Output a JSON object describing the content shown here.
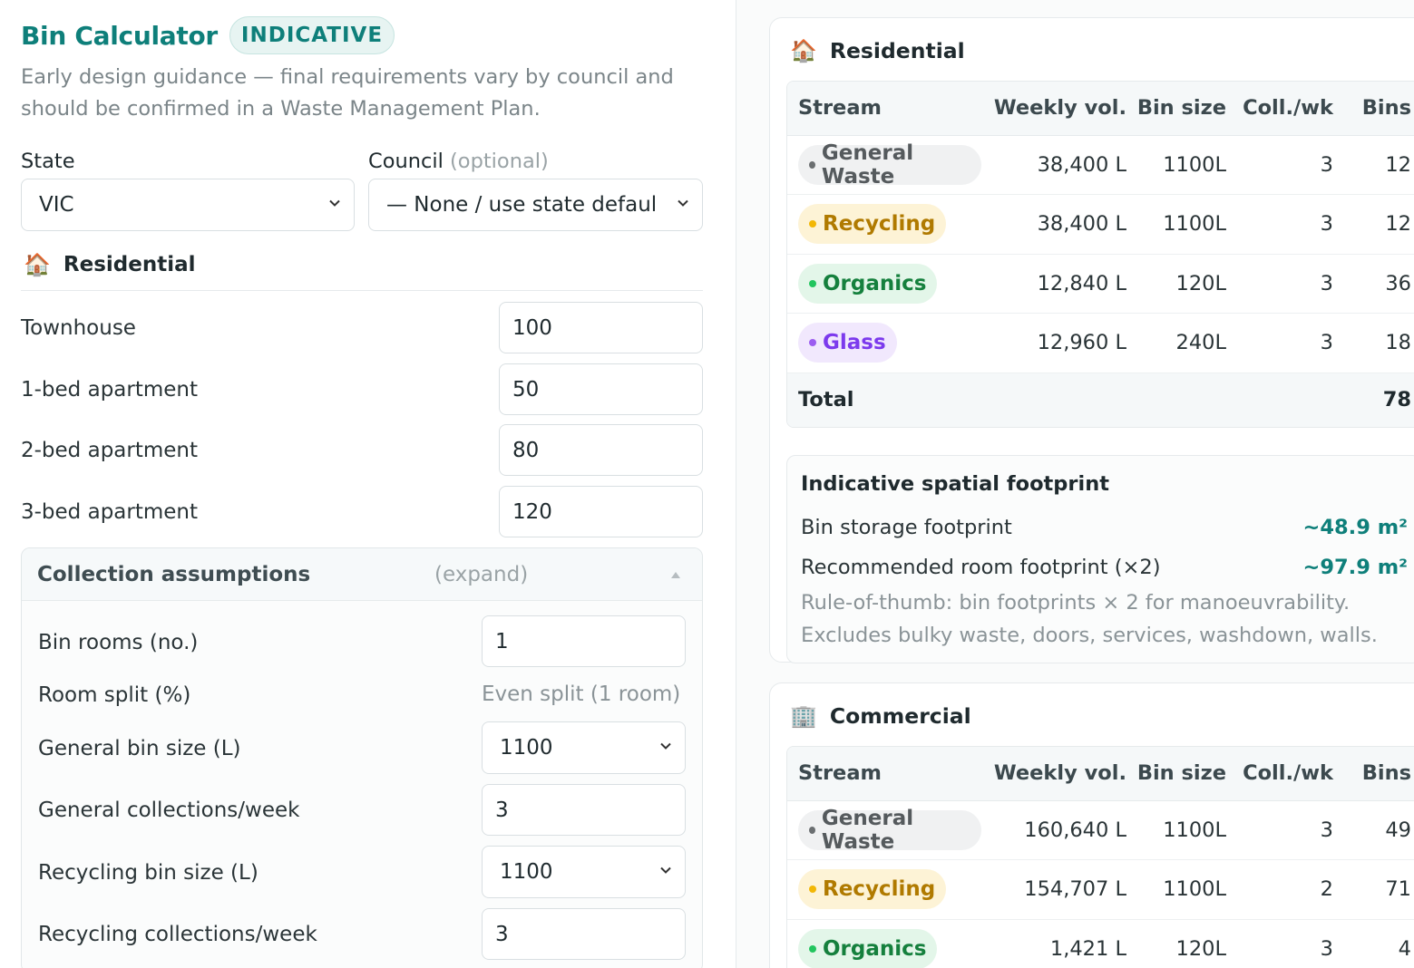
{
  "header": {
    "title": "Bin Calculator",
    "badge": "INDICATIVE",
    "subtitle": "Early design guidance — final requirements vary by council and should be confirmed in a Waste Management Plan."
  },
  "form": {
    "state_label": "State",
    "state_value": "VIC",
    "council_label": "Council",
    "council_optional": "(optional)",
    "council_value": "— None / use state defaults"
  },
  "residential_inputs": {
    "heading": "Residential",
    "icon": "house-icon",
    "rows": [
      {
        "label": "Townhouse",
        "value": "100"
      },
      {
        "label": "1-bed apartment",
        "value": "50"
      },
      {
        "label": "2-bed apartment",
        "value": "80"
      },
      {
        "label": "3-bed apartment",
        "value": "120"
      }
    ]
  },
  "assumptions": {
    "title": "Collection assumptions",
    "toggle": "(expand)",
    "bin_rooms_label": "Bin rooms (no.)",
    "bin_rooms_value": "1",
    "room_split_label": "Room split (%)",
    "room_split_value": "Even split (1 room)",
    "general_bin_label": "General bin size (L)",
    "general_bin_value": "1100",
    "general_coll_label": "General collections/week",
    "general_coll_value": "3",
    "recycling_bin_label": "Recycling bin size (L)",
    "recycling_bin_value": "1100",
    "recycling_coll_label": "Recycling collections/week",
    "recycling_coll_value": "3"
  },
  "colors": {
    "accent": "#0e7f7a",
    "general": "#6b6f71",
    "recycling": "#c98a00",
    "organics": "#16a34a",
    "glass": "#8b3fe0"
  },
  "columns": {
    "stream": "Stream",
    "weekly": "Weekly vol.",
    "bin_size": "Bin size",
    "coll": "Coll./wk",
    "bins": "Bins"
  },
  "residential_results": {
    "heading": "Residential",
    "icon": "house-icon",
    "rows": [
      {
        "stream": "General Waste",
        "weekly": "38,400 L",
        "bin": "1100L",
        "coll": "3",
        "bins": "12"
      },
      {
        "stream": "Recycling",
        "weekly": "38,400 L",
        "bin": "1100L",
        "coll": "3",
        "bins": "12"
      },
      {
        "stream": "Organics",
        "weekly": "12,840 L",
        "bin": "120L",
        "coll": "3",
        "bins": "36"
      },
      {
        "stream": "Glass",
        "weekly": "12,960 L",
        "bin": "240L",
        "coll": "3",
        "bins": "18"
      }
    ],
    "total_label": "Total",
    "total_value": "78"
  },
  "footprint": {
    "title": "Indicative spatial footprint",
    "bin_label": "Bin storage footprint",
    "bin_value": "~48.9 m²",
    "room_label": "Recommended room footprint (×2)",
    "room_value": "~97.9 m²",
    "note_1": "Rule-of-thumb: bin footprints × 2 for manoeuvrability.",
    "note_2": "Excludes bulky waste, doors, services, washdown, walls."
  },
  "commercial_results": {
    "heading": "Commercial",
    "icon": "office-building-icon",
    "rows": [
      {
        "stream": "General Waste",
        "weekly": "160,640 L",
        "bin": "1100L",
        "coll": "3",
        "bins": "49"
      },
      {
        "stream": "Recycling",
        "weekly": "154,707 L",
        "bin": "1100L",
        "coll": "2",
        "bins": "71"
      },
      {
        "stream": "Organics",
        "weekly": "1,421 L",
        "bin": "120L",
        "coll": "3",
        "bins": "4"
      }
    ]
  }
}
